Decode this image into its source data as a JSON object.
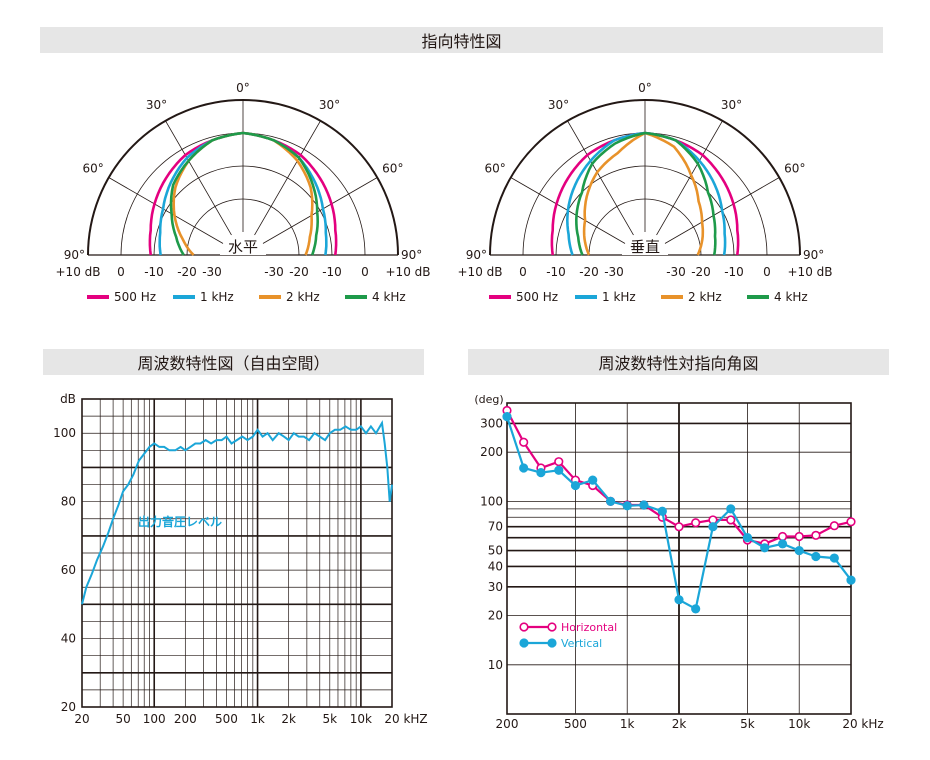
{
  "title": "指向特性図",
  "colors": {
    "s500": "#e4007f",
    "s1k": "#1ba6d8",
    "s2k": "#e8922a",
    "s4k": "#1e9a4a",
    "axis": "#231815",
    "horiz": "#e4007f",
    "vert": "#1ba6d8"
  },
  "polar": {
    "angle_labels": {
      "top": "0°",
      "l30": "30°",
      "r30": "30°",
      "l60": "60°",
      "r60": "60°",
      "l90": "90°",
      "r90": "90°"
    },
    "db_scale": [
      "+10 dB",
      "0",
      "-10",
      "-20",
      "-30",
      "-30",
      "-20",
      "-10",
      "0",
      "+10 dB"
    ],
    "legend": [
      {
        "name": "500 Hz",
        "color": "#e4007f"
      },
      {
        "name": "1 kHz",
        "color": "#1ba6d8"
      },
      {
        "name": "2 kHz",
        "color": "#e8922a"
      },
      {
        "name": "4 kHz",
        "color": "#1e9a4a"
      }
    ]
  },
  "chart_data": [
    {
      "type": "line",
      "title": "水平",
      "coord": "polar",
      "angles_deg": [
        -90,
        -75,
        -60,
        -45,
        -30,
        -15,
        0,
        15,
        30,
        45,
        60,
        75,
        90
      ],
      "radial_unit": "dB",
      "series": [
        {
          "name": "500 Hz",
          "values": [
            -9,
            -8,
            -6,
            -4,
            -2,
            -1,
            0,
            -1,
            -2,
            -4,
            -6,
            -8,
            -9
          ]
        },
        {
          "name": "1 kHz",
          "values": [
            -12,
            -11,
            -9,
            -6,
            -3,
            -1,
            0,
            -1,
            -3,
            -6,
            -9,
            -11,
            -12
          ]
        },
        {
          "name": "2 kHz",
          "values": [
            -22,
            -18,
            -13,
            -8,
            -4,
            -1,
            0,
            -1,
            -4,
            -8,
            -13,
            -16,
            -18
          ]
        },
        {
          "name": "4 kHz",
          "values": [
            -19,
            -16,
            -12,
            -7,
            -4,
            -1,
            0,
            -1,
            -3,
            -7,
            -11,
            -14,
            -16
          ]
        }
      ]
    },
    {
      "type": "line",
      "title": "垂直",
      "coord": "polar",
      "angles_deg": [
        -90,
        -75,
        -60,
        -45,
        -30,
        -15,
        0,
        15,
        30,
        45,
        60,
        75,
        90
      ],
      "radial_unit": "dB",
      "series": [
        {
          "name": "500 Hz",
          "values": [
            -9,
            -8,
            -6,
            -4,
            -2,
            -1,
            0,
            -1,
            -2,
            -4,
            -6,
            -8,
            -9
          ]
        },
        {
          "name": "1 kHz",
          "values": [
            -15,
            -13,
            -10,
            -7,
            -4,
            -1,
            0,
            -1,
            -4,
            -7,
            -10,
            -12,
            -13
          ]
        },
        {
          "name": "2 kHz",
          "values": [
            -20,
            -18,
            -16,
            -12,
            -8,
            -5,
            0,
            -3,
            -9,
            -14,
            -17,
            -19,
            -21
          ]
        },
        {
          "name": "4 kHz",
          "values": [
            -18,
            -16,
            -13,
            -10,
            -5,
            -2,
            0,
            -1,
            -5,
            -10,
            -13,
            -15,
            -16
          ]
        }
      ]
    },
    {
      "type": "line",
      "title": "周波数特性図（自由空間）",
      "xscale": "log",
      "xlim": [
        20,
        20000
      ],
      "ylim": [
        20,
        110
      ],
      "ylabel": "dB",
      "x_ticks": [
        {
          "v": 20,
          "l": "20"
        },
        {
          "v": 50,
          "l": "50"
        },
        {
          "v": 100,
          "l": "100"
        },
        {
          "v": 200,
          "l": "200"
        },
        {
          "v": 500,
          "l": "500"
        },
        {
          "v": 1000,
          "l": "1k"
        },
        {
          "v": 2000,
          "l": "2k"
        },
        {
          "v": 5000,
          "l": "5k"
        },
        {
          "v": 10000,
          "l": "10k"
        },
        {
          "v": 20000,
          "l": "20 kHZ"
        }
      ],
      "y_ticks": [
        {
          "v": 20,
          "l": "20"
        },
        {
          "v": 40,
          "l": "40"
        },
        {
          "v": 60,
          "l": "60"
        },
        {
          "v": 80,
          "l": "80"
        },
        {
          "v": 100,
          "l": "100"
        }
      ],
      "annotation": "出力音圧レベル",
      "series": [
        {
          "name": "出力音圧レベル",
          "x": [
            20,
            22,
            25,
            28,
            32,
            36,
            40,
            45,
            50,
            56,
            63,
            71,
            80,
            90,
            100,
            112,
            125,
            140,
            160,
            180,
            200,
            224,
            250,
            280,
            315,
            355,
            400,
            450,
            500,
            560,
            630,
            710,
            800,
            900,
            1000,
            1120,
            1250,
            1400,
            1600,
            1800,
            2000,
            2240,
            2500,
            2800,
            3150,
            3550,
            4000,
            4500,
            5000,
            5600,
            6300,
            7100,
            8000,
            9000,
            10000,
            11200,
            12500,
            14000,
            16000,
            17000,
            18000,
            19000,
            20000
          ],
          "y": [
            50,
            55,
            59,
            63,
            67,
            71,
            75,
            79,
            83,
            85,
            88,
            92,
            94,
            96,
            97,
            96,
            96,
            95,
            95,
            96,
            95,
            96,
            97,
            97,
            98,
            97,
            98,
            98,
            99,
            97,
            98,
            99,
            98,
            99,
            101,
            99,
            100,
            98,
            100,
            99,
            98,
            100,
            99,
            99,
            98,
            100,
            99,
            98,
            100,
            101,
            101,
            102,
            101,
            101,
            102,
            100,
            102,
            100,
            103,
            97,
            90,
            80,
            85
          ]
        }
      ]
    },
    {
      "type": "line",
      "title": "周波数特性対指向角図",
      "xscale": "log",
      "yscale": "log",
      "xlim": [
        200,
        20000
      ],
      "ylim": [
        5,
        400
      ],
      "ylabel": "(deg)",
      "x_ticks": [
        {
          "v": 200,
          "l": "200"
        },
        {
          "v": 500,
          "l": "500"
        },
        {
          "v": 1000,
          "l": "1k"
        },
        {
          "v": 2000,
          "l": "2k"
        },
        {
          "v": 5000,
          "l": "5k"
        },
        {
          "v": 10000,
          "l": "10k"
        },
        {
          "v": 20000,
          "l": "20 kHz"
        }
      ],
      "y_ticks": [
        {
          "v": 10,
          "l": "10"
        },
        {
          "v": 20,
          "l": "20"
        },
        {
          "v": 30,
          "l": "30"
        },
        {
          "v": 40,
          "l": "40"
        },
        {
          "v": 50,
          "l": "50"
        },
        {
          "v": 70,
          "l": "70"
        },
        {
          "v": 100,
          "l": "100"
        },
        {
          "v": 200,
          "l": "200"
        },
        {
          "v": 300,
          "l": "300"
        }
      ],
      "series": [
        {
          "name": "Horizontal",
          "x": [
            200,
            250,
            315,
            400,
            500,
            630,
            800,
            1000,
            1250,
            1600,
            2000,
            2500,
            3150,
            4000,
            5000,
            6300,
            8000,
            10000,
            12500,
            16000,
            20000
          ],
          "y": [
            360,
            230,
            160,
            175,
            135,
            125,
            100,
            95,
            95,
            80,
            70,
            74,
            77,
            77,
            58,
            55,
            61,
            61,
            62,
            71,
            75
          ]
        },
        {
          "name": "Vertical",
          "x": [
            200,
            250,
            315,
            400,
            500,
            630,
            800,
            1000,
            1250,
            1600,
            2000,
            2500,
            3150,
            4000,
            5000,
            6300,
            8000,
            10000,
            12500,
            16000,
            20000
          ],
          "y": [
            330,
            160,
            150,
            155,
            125,
            135,
            100,
            94,
            95,
            87,
            25,
            22,
            70,
            90,
            60,
            52,
            55,
            50,
            46,
            45,
            33
          ]
        }
      ]
    }
  ]
}
